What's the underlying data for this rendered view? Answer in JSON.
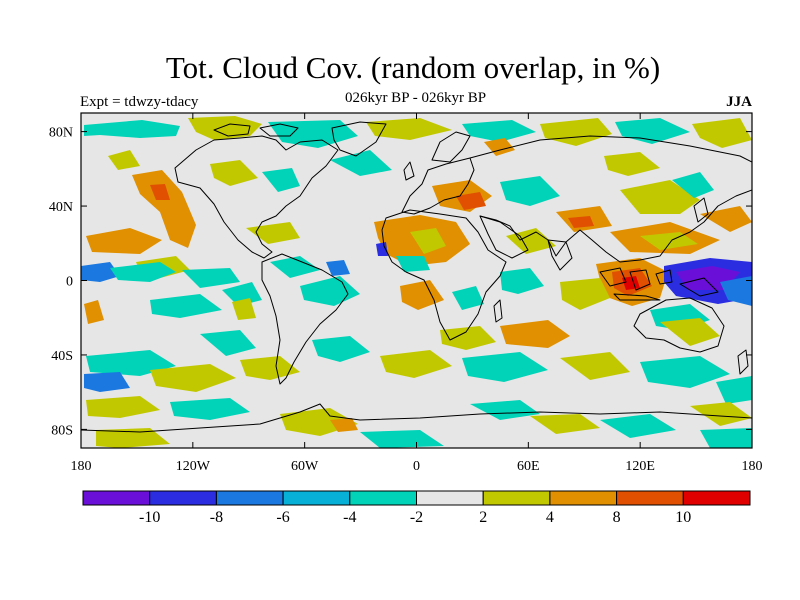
{
  "title": "Tot. Cloud Cov. (random overlap, in %)",
  "subtitle_left": "Expt = tdwzy-tdacy",
  "subtitle_center": "026kyr BP - 026kyr BP",
  "subtitle_right": "JJA",
  "map": {
    "projection": "cylindrical-equidistant",
    "lon_ticks": [
      "180",
      "120W",
      "60W",
      "0",
      "60E",
      "120E",
      "180"
    ],
    "lat_ticks": [
      "80N",
      "40N",
      "0",
      "40S",
      "80S"
    ],
    "background_color": "#e6e6e6"
  },
  "colorbar": {
    "colors": [
      "#6a0fd8",
      "#2a2ee0",
      "#1a78e0",
      "#06b0d6",
      "#00d3b8",
      "#e6e6e6",
      "#c2c800",
      "#e09000",
      "#e05000",
      "#e00000"
    ],
    "labels": [
      "-10",
      "-8",
      "-6",
      "-4",
      "-2",
      "2",
      "4",
      "8",
      "10"
    ]
  }
}
